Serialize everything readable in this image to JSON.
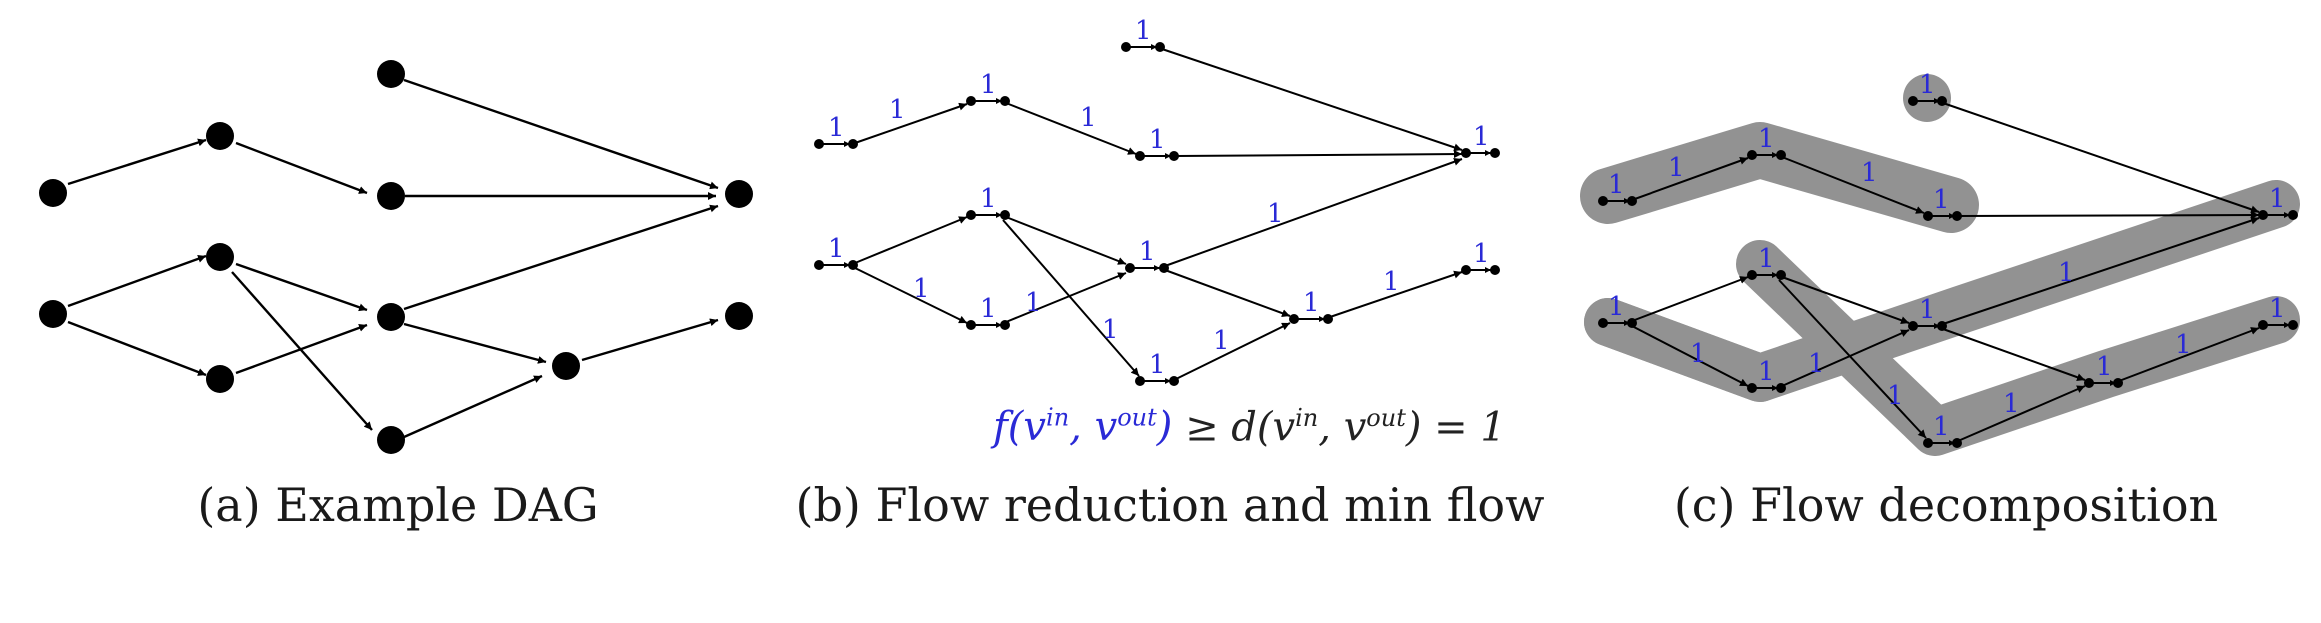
{
  "panels": {
    "a": {
      "caption": "(a) Example DAG"
    },
    "b": {
      "caption": "(b) Flow reduction and min flow",
      "edge_flow_label": "1",
      "equation": {
        "lhs": "f(v",
        "in": "in",
        "comma": ", v",
        "out": "out",
        "close": ")",
        "rest_a": " ≥ d(v",
        "rest_b": ") = 1"
      }
    },
    "c": {
      "caption": "(c) Flow decomposition",
      "edge_flow_label": "1"
    }
  },
  "colors": {
    "edge": "#000000",
    "node": "#000000",
    "flow_label": "#2a2ad6",
    "path_highlight": "#808080"
  }
}
